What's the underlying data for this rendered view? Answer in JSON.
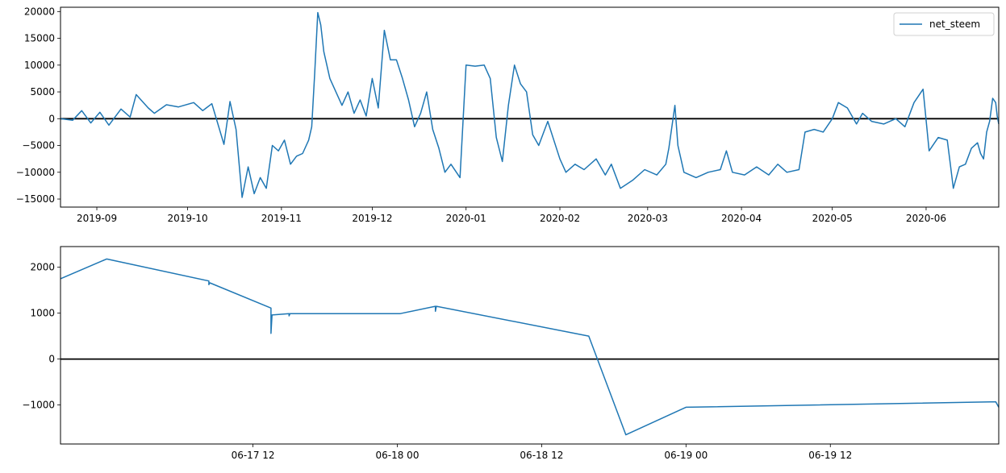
{
  "chart_data": [
    {
      "type": "line",
      "title": "",
      "xlabel": "",
      "ylabel": "",
      "legend": {
        "entries": [
          "net_steem"
        ],
        "placement": "top-right"
      },
      "xlim": [
        "2019-08-20",
        "2020-06-25"
      ],
      "ylim": [
        -16500,
        20800
      ],
      "x_ticks": [
        "2019-09",
        "2019-10",
        "2019-11",
        "2019-12",
        "2020-01",
        "2020-02",
        "2020-03",
        "2020-04",
        "2020-05",
        "2020-06"
      ],
      "y_ticks": [
        20000,
        15000,
        10000,
        5000,
        0,
        -5000,
        -10000,
        -15000
      ],
      "hline": 0,
      "series": [
        {
          "name": "net_steem",
          "color": "#1f77b4",
          "points": [
            [
              "2019-08-20",
              0
            ],
            [
              "2019-08-24",
              -300
            ],
            [
              "2019-08-27",
              1500
            ],
            [
              "2019-08-30",
              -800
            ],
            [
              "2019-09-02",
              1200
            ],
            [
              "2019-09-05",
              -1200
            ],
            [
              "2019-09-09",
              1800
            ],
            [
              "2019-09-12",
              300
            ],
            [
              "2019-09-14",
              4500
            ],
            [
              "2019-09-18",
              2000
            ],
            [
              "2019-09-20",
              1000
            ],
            [
              "2019-09-24",
              2600
            ],
            [
              "2019-09-28",
              2200
            ],
            [
              "2019-10-03",
              3000
            ],
            [
              "2019-10-06",
              1500
            ],
            [
              "2019-10-09",
              2800
            ],
            [
              "2019-10-11",
              -1000
            ],
            [
              "2019-10-13",
              -4800
            ],
            [
              "2019-10-15",
              3200
            ],
            [
              "2019-10-17",
              -2000
            ],
            [
              "2019-10-19",
              -14700
            ],
            [
              "2019-10-21",
              -9000
            ],
            [
              "2019-10-23",
              -14000
            ],
            [
              "2019-10-25",
              -11000
            ],
            [
              "2019-10-27",
              -13000
            ],
            [
              "2019-10-29",
              -5000
            ],
            [
              "2019-10-31",
              -6000
            ],
            [
              "2019-11-02",
              -4000
            ],
            [
              "2019-11-04",
              -8500
            ],
            [
              "2019-11-06",
              -7000
            ],
            [
              "2019-11-08",
              -6500
            ],
            [
              "2019-11-10",
              -4000
            ],
            [
              "2019-11-11",
              -1500
            ],
            [
              "2019-11-12",
              8500
            ],
            [
              "2019-11-13",
              19800
            ],
            [
              "2019-11-14",
              17500
            ],
            [
              "2019-11-15",
              12500
            ],
            [
              "2019-11-17",
              7500
            ],
            [
              "2019-11-19",
              5000
            ],
            [
              "2019-11-21",
              2500
            ],
            [
              "2019-11-23",
              5000
            ],
            [
              "2019-11-25",
              1000
            ],
            [
              "2019-11-27",
              3500
            ],
            [
              "2019-11-29",
              500
            ],
            [
              "2019-12-01",
              7500
            ],
            [
              "2019-12-03",
              2000
            ],
            [
              "2019-12-05",
              16500
            ],
            [
              "2019-12-07",
              11000
            ],
            [
              "2019-12-09",
              11000
            ],
            [
              "2019-12-11",
              7500
            ],
            [
              "2019-12-13",
              3500
            ],
            [
              "2019-12-15",
              -1500
            ],
            [
              "2019-12-17",
              1000
            ],
            [
              "2019-12-19",
              5000
            ],
            [
              "2019-12-21",
              -2000
            ],
            [
              "2019-12-23",
              -5500
            ],
            [
              "2019-12-25",
              -10000
            ],
            [
              "2019-12-27",
              -8500
            ],
            [
              "2019-12-30",
              -11000
            ],
            [
              "2020-01-01",
              10000
            ],
            [
              "2020-01-04",
              9800
            ],
            [
              "2020-01-07",
              10000
            ],
            [
              "2020-01-09",
              7500
            ],
            [
              "2020-01-11",
              -3500
            ],
            [
              "2020-01-13",
              -8000
            ],
            [
              "2020-01-15",
              2500
            ],
            [
              "2020-01-17",
              10000
            ],
            [
              "2020-01-19",
              6500
            ],
            [
              "2020-01-21",
              5000
            ],
            [
              "2020-01-23",
              -3000
            ],
            [
              "2020-01-25",
              -5000
            ],
            [
              "2020-01-28",
              -500
            ],
            [
              "2020-02-01",
              -7500
            ],
            [
              "2020-02-03",
              -10000
            ],
            [
              "2020-02-06",
              -8500
            ],
            [
              "2020-02-09",
              -9500
            ],
            [
              "2020-02-13",
              -7500
            ],
            [
              "2020-02-16",
              -10500
            ],
            [
              "2020-02-18",
              -8500
            ],
            [
              "2020-02-21",
              -13000
            ],
            [
              "2020-02-25",
              -11500
            ],
            [
              "2020-02-29",
              -9500
            ],
            [
              "2020-03-04",
              -10500
            ],
            [
              "2020-03-07",
              -8500
            ],
            [
              "2020-03-08",
              -5500
            ],
            [
              "2020-03-10",
              2500
            ],
            [
              "2020-03-11",
              -5000
            ],
            [
              "2020-03-13",
              -10000
            ],
            [
              "2020-03-17",
              -11000
            ],
            [
              "2020-03-21",
              -10000
            ],
            [
              "2020-03-25",
              -9500
            ],
            [
              "2020-03-27",
              -6000
            ],
            [
              "2020-03-29",
              -10000
            ],
            [
              "2020-04-02",
              -10500
            ],
            [
              "2020-04-06",
              -9000
            ],
            [
              "2020-04-10",
              -10500
            ],
            [
              "2020-04-13",
              -8500
            ],
            [
              "2020-04-16",
              -10000
            ],
            [
              "2020-04-20",
              -9500
            ],
            [
              "2020-04-22",
              -2500
            ],
            [
              "2020-04-25",
              -2000
            ],
            [
              "2020-04-28",
              -2500
            ],
            [
              "2020-05-01",
              0
            ],
            [
              "2020-05-03",
              3000
            ],
            [
              "2020-05-06",
              2000
            ],
            [
              "2020-05-09",
              -1000
            ],
            [
              "2020-05-11",
              1000
            ],
            [
              "2020-05-14",
              -500
            ],
            [
              "2020-05-18",
              -1000
            ],
            [
              "2020-05-22",
              0
            ],
            [
              "2020-05-25",
              -1500
            ],
            [
              "2020-05-28",
              3000
            ],
            [
              "2020-05-31",
              5500
            ],
            [
              "2020-06-02",
              -6000
            ],
            [
              "2020-06-05",
              -3500
            ],
            [
              "2020-06-08",
              -4000
            ],
            [
              "2020-06-09",
              -8500
            ],
            [
              "2020-06-10",
              -13000
            ],
            [
              "2020-06-12",
              -9000
            ],
            [
              "2020-06-14",
              -8500
            ],
            [
              "2020-06-16",
              -5500
            ],
            [
              "2020-06-18",
              -4500
            ],
            [
              "2020-06-19",
              -6500
            ],
            [
              "2020-06-20",
              -7500
            ],
            [
              "2020-06-21",
              -2500
            ],
            [
              "2020-06-22",
              -500
            ],
            [
              "2020-06-23",
              3800
            ],
            [
              "2020-06-24",
              3000
            ],
            [
              "2020-06-24T12",
              500
            ],
            [
              "2020-06-25",
              -1000
            ]
          ]
        }
      ]
    },
    {
      "type": "line",
      "title": "",
      "xlabel": "",
      "ylabel": "",
      "xlim": [
        "2020-06-16T20:00",
        "2020-06-20T02:00"
      ],
      "ylim": [
        -1850,
        2450
      ],
      "x_ticks": [
        "06-17 12",
        "06-18 00",
        "06-18 12",
        "06-19 00",
        "06-19 12"
      ],
      "y_ticks": [
        2000,
        1000,
        0,
        -1000
      ],
      "hline": 0,
      "series": [
        {
          "name": "",
          "color": "#1f77b4",
          "points": [
            [
              "2020-06-16T20:00",
              1750
            ],
            [
              "2020-06-16T23:50",
              2180
            ],
            [
              "2020-06-17T08:20",
              1700
            ],
            [
              "2020-06-17T08:20",
              1620
            ],
            [
              "2020-06-17T08:25",
              1660
            ],
            [
              "2020-06-17T13:30",
              1110
            ],
            [
              "2020-06-17T13:30",
              560
            ],
            [
              "2020-06-17T13:35",
              960
            ],
            [
              "2020-06-17T15:00",
              990
            ],
            [
              "2020-06-17T15:00",
              940
            ],
            [
              "2020-06-17T15:05",
              990
            ],
            [
              "2020-06-18T00:15",
              990
            ],
            [
              "2020-06-18T03:10",
              1150
            ],
            [
              "2020-06-18T03:10",
              1040
            ],
            [
              "2020-06-18T03:15",
              1150
            ],
            [
              "2020-06-18T15:55",
              500
            ],
            [
              "2020-06-18T19:00",
              -1650
            ],
            [
              "2020-06-19T00:00",
              -1050
            ],
            [
              "2020-06-20T01:45",
              -930
            ],
            [
              "2020-06-20T02:00",
              -1050
            ]
          ]
        }
      ]
    }
  ]
}
